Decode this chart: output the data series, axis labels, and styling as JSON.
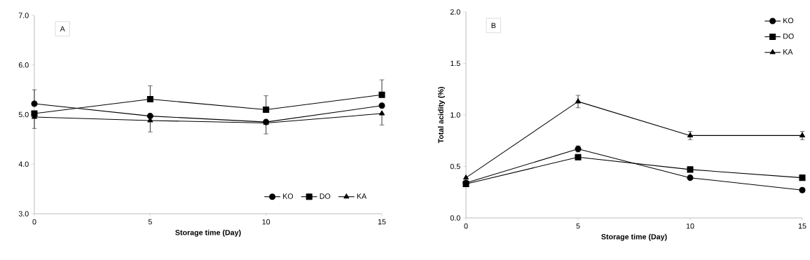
{
  "chart_data": [
    {
      "type": "line",
      "annotations": [
        "A"
      ],
      "xlabel": "Storage time (Day)",
      "x": [
        0,
        5,
        10,
        15
      ],
      "xlim": [
        0,
        15
      ],
      "xticks": [
        0,
        5,
        10,
        15
      ],
      "ylim": [
        3,
        7
      ],
      "yticks": [
        {
          "value": 3,
          "label": "3.0"
        },
        {
          "value": 4,
          "label": "4.0"
        },
        {
          "value": 5,
          "label": "5.0"
        },
        {
          "value": 6,
          "label": "6.0"
        },
        {
          "value": 7,
          "label": "7.0"
        }
      ],
      "legend": "bottom right",
      "grid": false,
      "line_style": "solid",
      "series": [
        {
          "name": "KO",
          "color": "#000000",
          "marker": "circle",
          "values": [
            5.22,
            4.97,
            4.85,
            5.18
          ],
          "errors": [
            [
              5.22,
              5.5
            ],
            null,
            null,
            null
          ]
        },
        {
          "name": "DO",
          "color": "#000000",
          "marker": "square",
          "values": [
            5.02,
            5.31,
            5.1,
            5.4
          ],
          "errors": [
            null,
            [
              5.31,
              5.58
            ],
            [
              5.1,
              5.38
            ],
            [
              5.4,
              5.7
            ]
          ]
        },
        {
          "name": "KA",
          "color": "#000000",
          "marker": "triangle",
          "values": [
            4.95,
            4.88,
            4.83,
            5.02
          ],
          "errors": [
            [
              4.72,
              4.95
            ],
            [
              4.65,
              4.88
            ],
            [
              4.61,
              4.83
            ],
            [
              4.79,
              5.02
            ]
          ]
        }
      ]
    },
    {
      "type": "line",
      "annotations": [
        "B"
      ],
      "xlabel": "Storage time (Day)",
      "ylabel": "Total acidity (%)",
      "x": [
        0,
        5,
        10,
        15
      ],
      "xlim": [
        0,
        15
      ],
      "xticks": [
        0,
        5,
        10,
        15
      ],
      "ylim": [
        0,
        2
      ],
      "yticks": [
        {
          "value": 0,
          "label": "0.0"
        },
        {
          "value": 0.5,
          "label": "0.5"
        },
        {
          "value": 1,
          "label": "1.0"
        },
        {
          "value": 1.5,
          "label": "1.5"
        },
        {
          "value": 2,
          "label": "2.0"
        }
      ],
      "legend": "top right",
      "grid": false,
      "line_style": "solid",
      "series": [
        {
          "name": "KO",
          "color": "#000000",
          "marker": "circle",
          "values": [
            0.34,
            0.67,
            0.39,
            0.27
          ],
          "errors": [
            null,
            0.03,
            0.02,
            0.02
          ]
        },
        {
          "name": "DO",
          "color": "#000000",
          "marker": "square",
          "values": [
            0.33,
            0.59,
            0.47,
            0.39
          ],
          "errors": [
            null,
            0.02,
            0.02,
            0.02
          ]
        },
        {
          "name": "KA",
          "color": "#000000",
          "marker": "triangle",
          "values": [
            0.39,
            1.13,
            0.8,
            0.8
          ],
          "errors": [
            null,
            0.06,
            0.04,
            0.04
          ]
        }
      ]
    }
  ]
}
